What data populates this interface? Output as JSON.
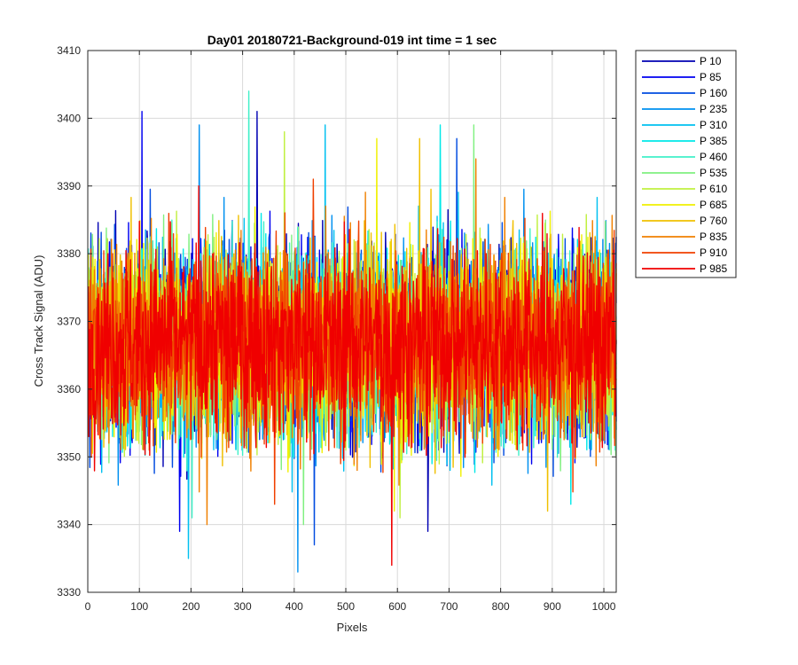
{
  "chart_data": {
    "type": "line",
    "title": "Day01 20180721-Background-019 int time = 1 sec",
    "xlabel": "Pixels",
    "ylabel": "Cross Track Signal (ADU)",
    "xlim": [
      0,
      1024
    ],
    "ylim": [
      3330,
      3410
    ],
    "xticks": [
      0,
      100,
      200,
      300,
      400,
      500,
      600,
      700,
      800,
      900,
      1000
    ],
    "yticks": [
      3330,
      3340,
      3350,
      3360,
      3370,
      3380,
      3390,
      3400,
      3410
    ],
    "grid": true,
    "legend_position": "outside-top-right",
    "x_range": [
      1,
      1024
    ],
    "signal_mean": 3367,
    "series": [
      {
        "name": "P 10",
        "color": "#0000b3",
        "min": 3339,
        "max": 3401
      },
      {
        "name": "P 85",
        "color": "#0000f0",
        "min": 3339,
        "max": 3401
      },
      {
        "name": "P 160",
        "color": "#004be0",
        "min": 3337,
        "max": 3397
      },
      {
        "name": "P 235",
        "color": "#0090f0",
        "min": 3333,
        "max": 3399
      },
      {
        "name": "P 310",
        "color": "#00c0f0",
        "min": 3335,
        "max": 3399
      },
      {
        "name": "P 385",
        "color": "#00e8e8",
        "min": 3343,
        "max": 3399
      },
      {
        "name": "P 460",
        "color": "#40f0c8",
        "min": 3341,
        "max": 3404
      },
      {
        "name": "P 535",
        "color": "#80f080",
        "min": 3340,
        "max": 3399
      },
      {
        "name": "P 610",
        "color": "#c0f040",
        "min": 3341,
        "max": 3398
      },
      {
        "name": "P 685",
        "color": "#f0f000",
        "min": 3342,
        "max": 3397
      },
      {
        "name": "P 760",
        "color": "#f0c000",
        "min": 3342,
        "max": 3397
      },
      {
        "name": "P 835",
        "color": "#f08000",
        "min": 3340,
        "max": 3394
      },
      {
        "name": "P 910",
        "color": "#f04000",
        "min": 3343,
        "max": 3391
      },
      {
        "name": "P 985",
        "color": "#f00000",
        "min": 3334,
        "max": 3390
      }
    ]
  }
}
